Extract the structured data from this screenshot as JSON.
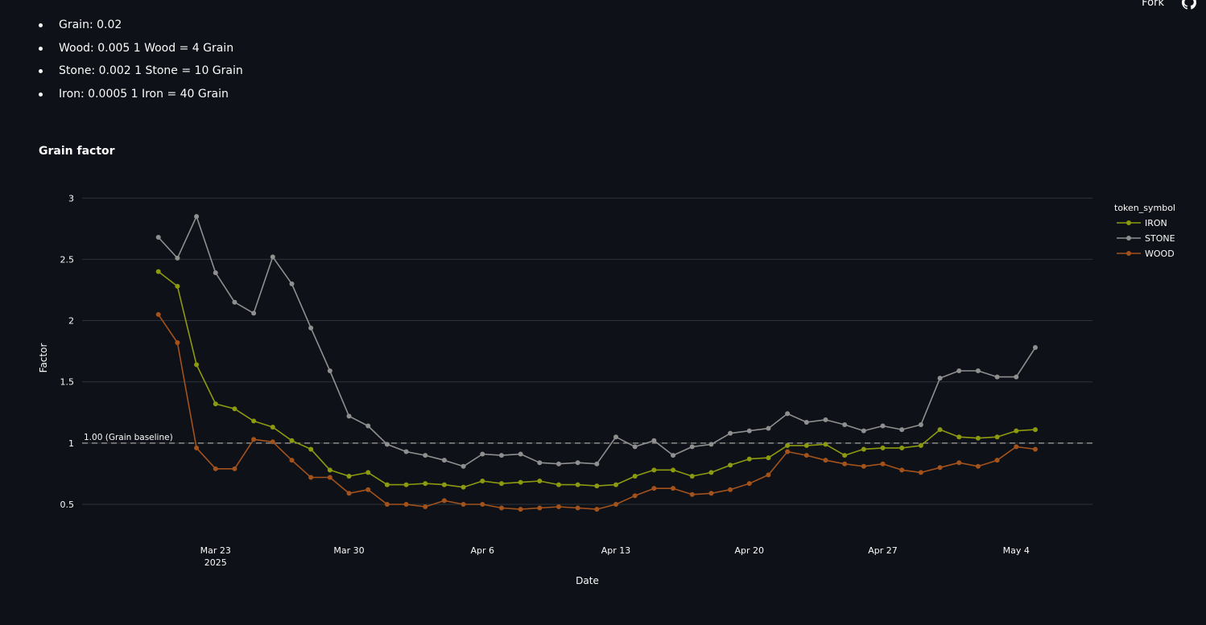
{
  "header": {
    "fork_label": "Fork",
    "github_icon": "github-icon"
  },
  "rates": [
    {
      "text": "Grain: 0.02"
    },
    {
      "text": "Wood: 0.005 1 Wood = 4 Grain"
    },
    {
      "text": "Stone: 0.002 1 Stone = 10 Grain"
    },
    {
      "text": "Iron: 0.0005 1 Iron = 40 Grain"
    }
  ],
  "chart_title": "Grain factor",
  "chart_data": {
    "type": "line",
    "title": "Grain factor",
    "xlabel": "Date",
    "ylabel": "Factor",
    "x_range": [
      "2025-03-16",
      "2025-05-08"
    ],
    "ylim": [
      0.27,
      3.12
    ],
    "yticks": [
      0.5,
      1,
      1.5,
      2,
      2.5,
      3
    ],
    "ytick_labels": [
      "0.5",
      "1",
      "1.5",
      "2",
      "2.5",
      "3"
    ],
    "xticks": [
      {
        "date": "2025-03-23",
        "label": "Mar 23",
        "sublabel": "2025"
      },
      {
        "date": "2025-03-30",
        "label": "Mar 30",
        "sublabel": ""
      },
      {
        "date": "2025-04-06",
        "label": "Apr 6",
        "sublabel": ""
      },
      {
        "date": "2025-04-13",
        "label": "Apr 13",
        "sublabel": ""
      },
      {
        "date": "2025-04-20",
        "label": "Apr 20",
        "sublabel": ""
      },
      {
        "date": "2025-04-27",
        "label": "Apr 27",
        "sublabel": ""
      },
      {
        "date": "2025-05-04",
        "label": "May 4",
        "sublabel": ""
      }
    ],
    "grid": true,
    "legend_title": "token_symbol",
    "legend_position": "right",
    "baseline": {
      "y": 1.0,
      "label": "1.00 (Grain baseline)",
      "color": "#8a8a8a"
    },
    "x": [
      "2025-03-20",
      "2025-03-21",
      "2025-03-22",
      "2025-03-23",
      "2025-03-24",
      "2025-03-25",
      "2025-03-26",
      "2025-03-27",
      "2025-03-28",
      "2025-03-29",
      "2025-03-30",
      "2025-03-31",
      "2025-04-01",
      "2025-04-02",
      "2025-04-03",
      "2025-04-04",
      "2025-04-05",
      "2025-04-06",
      "2025-04-07",
      "2025-04-08",
      "2025-04-09",
      "2025-04-10",
      "2025-04-11",
      "2025-04-12",
      "2025-04-13",
      "2025-04-14",
      "2025-04-15",
      "2025-04-16",
      "2025-04-17",
      "2025-04-18",
      "2025-04-19",
      "2025-04-20",
      "2025-04-21",
      "2025-04-22",
      "2025-04-23",
      "2025-04-24",
      "2025-04-25",
      "2025-04-26",
      "2025-04-27",
      "2025-04-28",
      "2025-04-29",
      "2025-04-30",
      "2025-05-01",
      "2025-05-02",
      "2025-05-03",
      "2025-05-04",
      "2025-05-05"
    ],
    "series": [
      {
        "name": "IRON",
        "color": "#8c9a0f",
        "values": [
          2.4,
          2.28,
          1.64,
          1.32,
          1.28,
          1.18,
          1.13,
          1.02,
          0.95,
          0.78,
          0.73,
          0.76,
          0.66,
          0.66,
          0.67,
          0.66,
          0.64,
          0.69,
          0.67,
          0.68,
          0.69,
          0.66,
          0.66,
          0.65,
          0.66,
          0.73,
          0.78,
          0.78,
          0.73,
          0.76,
          0.82,
          0.87,
          0.88,
          0.98,
          0.98,
          0.99,
          0.9,
          0.95,
          0.96,
          0.96,
          0.98,
          1.11,
          1.05,
          1.04,
          1.05,
          1.1,
          1.11
        ]
      },
      {
        "name": "STONE",
        "color": "#8f8f8f",
        "values": [
          2.68,
          2.51,
          2.85,
          2.39,
          2.15,
          2.06,
          2.52,
          2.3,
          1.94,
          1.59,
          1.22,
          1.14,
          0.99,
          0.93,
          0.9,
          0.86,
          0.81,
          0.91,
          0.9,
          0.91,
          0.84,
          0.83,
          0.84,
          0.83,
          1.05,
          0.97,
          1.02,
          0.9,
          0.97,
          0.99,
          1.08,
          1.1,
          1.12,
          1.24,
          1.17,
          1.19,
          1.15,
          1.1,
          1.14,
          1.11,
          1.15,
          1.53,
          1.59,
          1.59,
          1.54,
          1.54,
          1.78
        ]
      },
      {
        "name": "WOOD",
        "color": "#a3521c",
        "values": [
          2.05,
          1.82,
          0.96,
          0.79,
          0.79,
          1.03,
          1.01,
          0.86,
          0.72,
          0.72,
          0.59,
          0.62,
          0.5,
          0.5,
          0.48,
          0.53,
          0.5,
          0.5,
          0.47,
          0.46,
          0.47,
          0.48,
          0.47,
          0.46,
          0.5,
          0.57,
          0.63,
          0.63,
          0.58,
          0.59,
          0.62,
          0.67,
          0.74,
          0.93,
          0.9,
          0.86,
          0.83,
          0.81,
          0.83,
          0.78,
          0.76,
          0.8,
          0.84,
          0.81,
          0.86,
          0.97,
          0.95
        ]
      }
    ]
  }
}
